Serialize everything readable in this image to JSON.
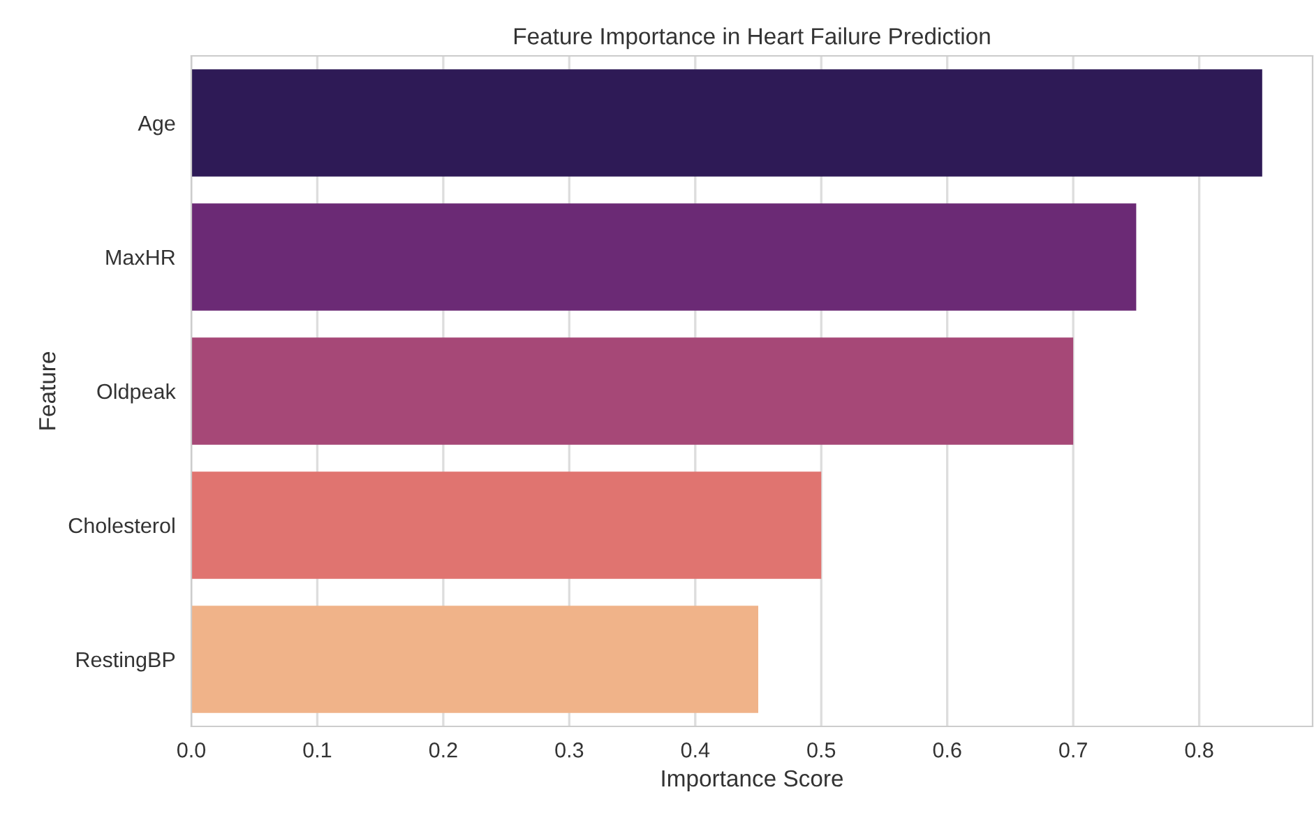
{
  "chart_data": {
    "type": "bar",
    "orientation": "horizontal",
    "title": "Feature Importance in Heart Failure Prediction",
    "xlabel": "Importance Score",
    "ylabel": "Feature",
    "categories": [
      "Age",
      "MaxHR",
      "Oldpeak",
      "Cholesterol",
      "RestingBP"
    ],
    "values": [
      0.85,
      0.75,
      0.7,
      0.5,
      0.45
    ],
    "colors": [
      "#2e1a56",
      "#6b2a75",
      "#a64877",
      "#e07470",
      "#f0b389"
    ],
    "xlim": [
      0,
      0.89
    ],
    "xticks": [
      {
        "value": 0,
        "label": "0.0"
      },
      0.1,
      0.2,
      0.3,
      0.4,
      0.5,
      0.6,
      0.7,
      0.8
    ],
    "grid": true
  }
}
